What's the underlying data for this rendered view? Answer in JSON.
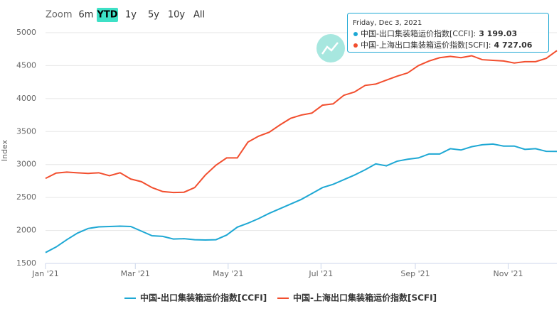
{
  "chart_data": {
    "type": "line",
    "y_label": "Index",
    "range_selector": {
      "label": "Zoom",
      "buttons": [
        "6m",
        "YTD",
        "1y",
        "5y",
        "10y",
        "All"
      ],
      "selected": 1
    },
    "x": [
      "2021-01-01",
      "2021-01-08",
      "2021-01-15",
      "2021-01-22",
      "2021-01-29",
      "2021-02-05",
      "2021-02-12",
      "2021-02-19",
      "2021-02-26",
      "2021-03-05",
      "2021-03-12",
      "2021-03-19",
      "2021-03-26",
      "2021-04-02",
      "2021-04-09",
      "2021-04-16",
      "2021-04-23",
      "2021-04-30",
      "2021-05-07",
      "2021-05-14",
      "2021-05-21",
      "2021-05-28",
      "2021-06-04",
      "2021-06-11",
      "2021-06-18",
      "2021-06-25",
      "2021-07-02",
      "2021-07-09",
      "2021-07-16",
      "2021-07-23",
      "2021-07-30",
      "2021-08-06",
      "2021-08-13",
      "2021-08-20",
      "2021-08-27",
      "2021-09-03",
      "2021-09-10",
      "2021-09-17",
      "2021-09-24",
      "2021-10-01",
      "2021-10-08",
      "2021-10-15",
      "2021-10-22",
      "2021-10-29",
      "2021-11-05",
      "2021-11-12",
      "2021-11-19",
      "2021-11-26",
      "2021-12-03"
    ],
    "series": [
      {
        "name": "中国-出口集装箱运价指数[CCFI]",
        "color": "#1ea8d4",
        "values": [
          1665,
          1750,
          1860,
          1960,
          2030,
          2055,
          2060,
          2065,
          2060,
          1990,
          1920,
          1910,
          1870,
          1875,
          1860,
          1855,
          1860,
          1930,
          2050,
          2110,
          2180,
          2260,
          2330,
          2400,
          2470,
          2560,
          2650,
          2700,
          2770,
          2840,
          2920,
          3010,
          2980,
          3050,
          3080,
          3100,
          3160,
          3160,
          3240,
          3220,
          3270,
          3300,
          3310,
          3280,
          3280,
          3230,
          3240,
          3200,
          3199.03
        ]
      },
      {
        "name": "中国-上海出口集装箱运价指数[SCFI]",
        "color": "#f24e2e",
        "values": [
          2790,
          2870,
          2885,
          2875,
          2865,
          2875,
          2830,
          2875,
          2780,
          2740,
          2650,
          2590,
          2575,
          2580,
          2650,
          2840,
          2990,
          3100,
          3100,
          3340,
          3430,
          3490,
          3600,
          3700,
          3750,
          3780,
          3900,
          3920,
          4050,
          4100,
          4200,
          4220,
          4280,
          4340,
          4390,
          4500,
          4570,
          4620,
          4640,
          4620,
          4650,
          4590,
          4580,
          4570,
          4540,
          4560,
          4560,
          4610,
          4727.06
        ]
      }
    ],
    "xlim": [
      "2021-01-01",
      "2021-12-03"
    ],
    "xticks": [
      {
        "value": "2021-01-01",
        "label": "Jan '21"
      },
      {
        "value": "2021-03-01",
        "label": "Mar '21"
      },
      {
        "value": "2021-05-01",
        "label": "May '21"
      },
      {
        "value": "2021-07-01",
        "label": "Jul '21"
      },
      {
        "value": "2021-09-01",
        "label": "Sep '21"
      },
      {
        "value": "2021-11-01",
        "label": "Nov '21"
      }
    ],
    "ylim": [
      1500,
      5000
    ],
    "yticks": [
      1500,
      2000,
      2500,
      3000,
      3500,
      4000,
      4500,
      5000
    ],
    "grid": true,
    "tooltip": {
      "date": "Friday, Dec 3, 2021",
      "rows": [
        {
          "name": "中国-出口集装箱运价指数[CCFI]:",
          "value": 3199.03,
          "label": "3 199.03"
        },
        {
          "name": "中国-上海出口集装箱运价指数[SCFI]:",
          "value": 4727.06,
          "label": "4 727.06"
        }
      ]
    }
  }
}
